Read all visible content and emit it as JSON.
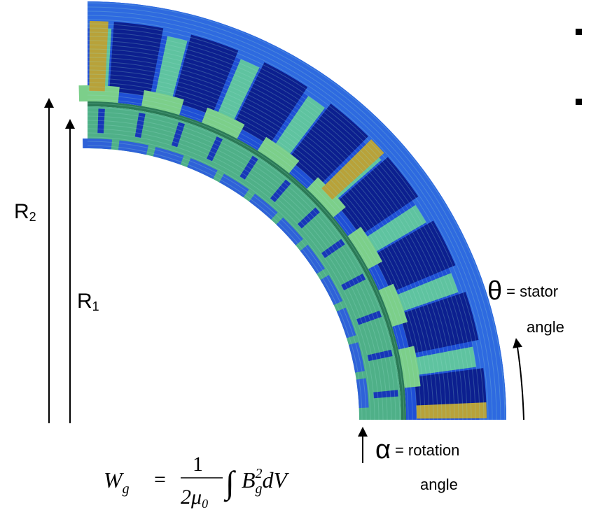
{
  "labels": {
    "r2": {
      "main": "R",
      "sub": "2"
    },
    "r1": {
      "main": "R",
      "sub": "1"
    },
    "theta": {
      "symbol": "θ",
      "text": "= stator",
      "text2": "angle"
    },
    "alpha": {
      "symbol": "α",
      "text": "= rotation",
      "text2": "angle"
    }
  },
  "formula": {
    "lhs": "W",
    "lhs_sub": "g",
    "eq": "=",
    "num": "1",
    "den": "2μ",
    "den_sub": "0",
    "integral": "∫",
    "b": "B",
    "b_sub": "g",
    "b_sup": "2",
    "dv": "dV"
  }
}
